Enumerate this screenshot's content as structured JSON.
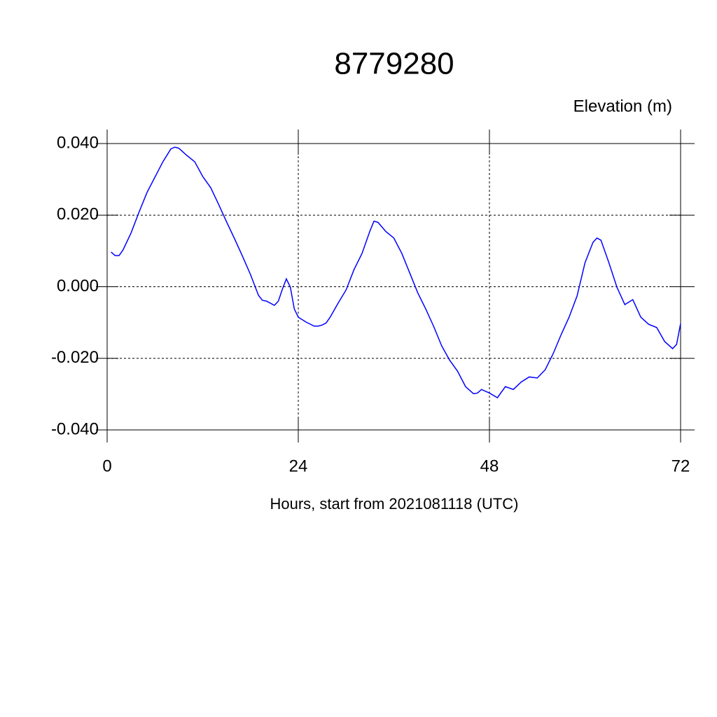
{
  "chart_data": {
    "type": "line",
    "title": "8779280",
    "subtitle": "Elevation (m)",
    "x_label": "Hours, start from 2021081118 (UTC)",
    "x": [
      0.5,
      1,
      1.5,
      2,
      3,
      4,
      5,
      6,
      7,
      8,
      8.5,
      9,
      10,
      11,
      12,
      13,
      14,
      15,
      16,
      17,
      18,
      19,
      19.5,
      20,
      21,
      21.5,
      22,
      22.5,
      23,
      23.5,
      24,
      25,
      26,
      26.5,
      27,
      27.5,
      28,
      29,
      30,
      31,
      32,
      33,
      33.5,
      34,
      35,
      36,
      37,
      38,
      39,
      40,
      41,
      42,
      43,
      44,
      45,
      46,
      46.5,
      47,
      48,
      49,
      50,
      51,
      52,
      53,
      54,
      55,
      56,
      57,
      58,
      59,
      60,
      61,
      61.5,
      62,
      63,
      64,
      65,
      66,
      67,
      68,
      69,
      70,
      71,
      71.5,
      72
    ],
    "series": [
      {
        "name": "Elevation",
        "color": "#0000ff",
        "values": [
          0.0097,
          0.0087,
          0.0087,
          0.0103,
          0.015,
          0.0208,
          0.0263,
          0.0306,
          0.0349,
          0.0385,
          0.039,
          0.0387,
          0.0367,
          0.0349,
          0.0308,
          0.0277,
          0.023,
          0.0181,
          0.0134,
          0.0085,
          0.0034,
          -0.0024,
          -0.0038,
          -0.004,
          -0.0052,
          -0.004,
          -0.0007,
          0.0022,
          -0.0001,
          -0.0062,
          -0.0085,
          -0.0099,
          -0.011,
          -0.011,
          -0.0107,
          -0.0101,
          -0.0085,
          -0.0046,
          -0.0009,
          0.0048,
          0.0093,
          0.0156,
          0.0183,
          0.018,
          0.0154,
          0.0136,
          0.0093,
          0.0038,
          -0.0017,
          -0.0062,
          -0.0111,
          -0.0165,
          -0.0205,
          -0.0236,
          -0.0279,
          -0.0299,
          -0.0297,
          -0.0287,
          -0.0297,
          -0.031,
          -0.0279,
          -0.0287,
          -0.0266,
          -0.0252,
          -0.0255,
          -0.0232,
          -0.0187,
          -0.0134,
          -0.0085,
          -0.0026,
          0.0067,
          0.0124,
          0.0136,
          0.013,
          0.0067,
          -0.0001,
          -0.005,
          -0.0036,
          -0.0085,
          -0.0105,
          -0.0114,
          -0.0153,
          -0.0173,
          -0.0161,
          -0.0103
        ]
      }
    ],
    "xlim": [
      0,
      72
    ],
    "xticks": [
      0,
      24,
      48,
      72
    ],
    "ylim": [
      -0.04,
      0.04
    ],
    "yticks": [
      {
        "value": -0.04,
        "label": "-0.040"
      },
      {
        "value": -0.02,
        "label": "-0.020"
      },
      {
        "value": 0,
        "label": "0.000"
      },
      {
        "value": 0.02,
        "label": "0.020"
      },
      {
        "value": 0.04,
        "label": "0.040"
      }
    ],
    "grid": true
  }
}
